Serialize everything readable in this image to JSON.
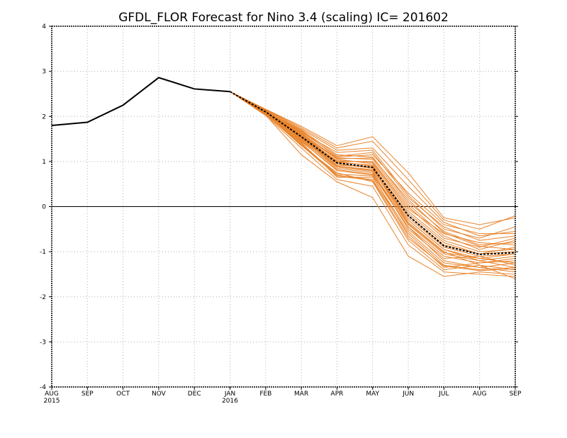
{
  "chart_data": {
    "type": "line",
    "title": "GFDL_FLOR Forecast for Nino 3.4 (scaling) IC= 201602",
    "x_tick_labels": [
      "AUG",
      "SEP",
      "OCT",
      "NOV",
      "DEC",
      "JAN",
      "FEB",
      "MAR",
      "APR",
      "MAY",
      "JUN",
      "JUL",
      "AUG",
      "SEP"
    ],
    "x_tick_sublabels": [
      "2015",
      "",
      "",
      "",
      "",
      "2016",
      "",
      "",
      "",
      "",
      "",
      "",
      "",
      ""
    ],
    "y_tick_labels": [
      "-4",
      "-3",
      "-2",
      "-1",
      "0",
      "1",
      "2",
      "3",
      "4"
    ],
    "ylim": [
      -4,
      4
    ],
    "grid": true,
    "zero_line": true,
    "colors": {
      "observed": "#000000",
      "ensemble": "#e8842c",
      "mean": "#000000",
      "grid": "#b0b0b0"
    },
    "observed": {
      "months": [
        0,
        1,
        2,
        3,
        4,
        5
      ],
      "values": [
        1.8,
        1.87,
        2.25,
        2.86,
        2.61,
        2.55
      ]
    },
    "ensemble_mean": {
      "months": [
        5,
        6,
        7,
        8,
        9,
        10,
        11,
        12,
        13
      ],
      "values": [
        2.55,
        2.1,
        1.55,
        0.97,
        0.87,
        -0.2,
        -0.87,
        -1.06,
        -1.02
      ]
    },
    "ensemble_members": [
      [
        2.55,
        2.12,
        1.7,
        1.15,
        1.1,
        0.1,
        -0.55,
        -0.85,
        -0.8
      ],
      [
        2.55,
        2.1,
        1.55,
        0.95,
        0.85,
        -0.25,
        -0.9,
        -1.1,
        -1.05
      ],
      [
        2.55,
        2.05,
        1.4,
        0.7,
        0.6,
        -0.6,
        -1.3,
        -1.4,
        -1.35
      ],
      [
        2.55,
        2.15,
        1.75,
        1.3,
        1.45,
        0.6,
        -0.3,
        -0.5,
        -0.2
      ],
      [
        2.55,
        2.08,
        1.45,
        0.8,
        0.7,
        -0.45,
        -1.1,
        -1.25,
        -1.2
      ],
      [
        2.55,
        2.1,
        1.6,
        1.05,
        0.95,
        -0.1,
        -0.75,
        -1.0,
        -0.95
      ],
      [
        2.55,
        2.12,
        1.65,
        1.2,
        1.25,
        0.25,
        -0.5,
        -0.7,
        -0.45
      ],
      [
        2.55,
        2.02,
        1.3,
        0.6,
        0.45,
        -0.85,
        -1.45,
        -1.5,
        -1.55
      ],
      [
        2.55,
        2.13,
        1.6,
        1.0,
        1.0,
        0.0,
        -0.7,
        -0.9,
        -0.7
      ],
      [
        2.55,
        2.07,
        1.5,
        0.9,
        0.8,
        -0.3,
        -0.95,
        -1.15,
        -1.25
      ],
      [
        2.55,
        2.11,
        1.68,
        1.1,
        1.15,
        0.3,
        -0.4,
        -0.6,
        -0.6
      ],
      [
        2.55,
        2.06,
        1.35,
        0.75,
        0.55,
        -0.75,
        -1.4,
        -1.3,
        -1.4
      ],
      [
        2.55,
        2.14,
        1.72,
        1.25,
        1.3,
        0.45,
        -0.35,
        -0.65,
        -0.55
      ],
      [
        2.55,
        2.09,
        1.48,
        0.85,
        0.75,
        -0.4,
        -1.05,
        -1.2,
        -1.1
      ],
      [
        2.55,
        2.04,
        1.42,
        0.65,
        0.65,
        -0.55,
        -1.25,
        -1.35,
        -1.45
      ],
      [
        2.55,
        2.1,
        1.58,
        1.0,
        0.9,
        -0.15,
        -0.8,
        -1.05,
        -0.9
      ],
      [
        2.55,
        2.08,
        1.52,
        0.92,
        0.88,
        -0.35,
        -1.0,
        -1.3,
        -1.6
      ],
      [
        2.55,
        2.12,
        1.62,
        1.08,
        1.05,
        0.05,
        -0.65,
        -0.95,
        -0.75
      ],
      [
        2.55,
        2.03,
        1.15,
        0.55,
        0.2,
        -1.1,
        -1.55,
        -1.45,
        -1.5
      ],
      [
        2.55,
        2.16,
        1.78,
        1.35,
        1.55,
        0.75,
        -0.25,
        -0.4,
        -0.25
      ],
      [
        2.55,
        2.07,
        1.46,
        0.88,
        0.78,
        -0.5,
        -1.15,
        -1.1,
        -1.3
      ],
      [
        2.55,
        2.11,
        1.56,
        1.02,
        0.98,
        -0.05,
        -0.6,
        -0.8,
        -0.85
      ],
      [
        2.55,
        2.05,
        1.38,
        0.72,
        0.68,
        -0.65,
        -1.35,
        -1.25,
        -1.15
      ],
      [
        2.55,
        2.09,
        1.54,
        0.98,
        0.92,
        -0.2,
        -0.85,
        -1.05,
        -1.0
      ],
      [
        2.55,
        2.13,
        1.66,
        1.12,
        1.2,
        0.2,
        -0.45,
        -0.75,
        -0.65
      ],
      [
        2.55,
        2.06,
        1.44,
        0.82,
        0.72,
        -0.45,
        -1.2,
        -1.35,
        -1.25
      ],
      [
        2.55,
        2.1,
        1.52,
        0.95,
        0.85,
        -0.3,
        -0.95,
        -1.2,
        -1.35
      ],
      [
        2.55,
        2.08,
        1.5,
        0.9,
        0.82,
        -0.38,
        -1.02,
        -1.15,
        -1.05
      ],
      [
        2.55,
        2.12,
        1.64,
        1.06,
        1.08,
        0.15,
        -0.58,
        -0.88,
        -0.95
      ],
      [
        2.55,
        2.04,
        1.36,
        0.68,
        0.58,
        -0.7,
        -1.32,
        -1.42,
        -1.38
      ]
    ]
  }
}
